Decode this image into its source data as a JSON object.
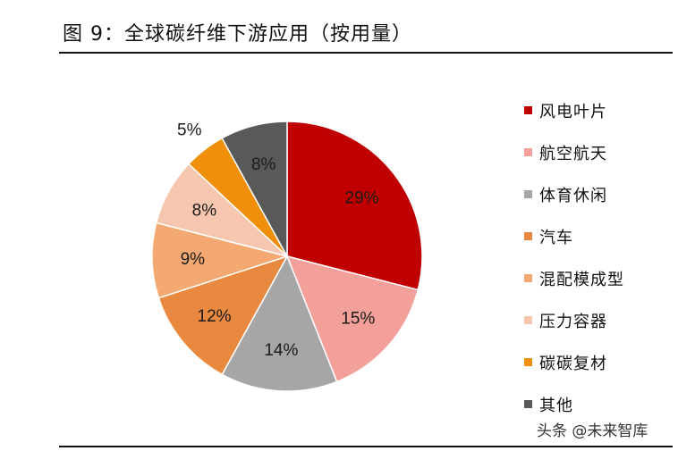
{
  "figure": {
    "title": "图 9：全球碳纤维下游应用（按用量）"
  },
  "watermark": {
    "text": "头条 @未来智库"
  },
  "chart_data": {
    "type": "pie",
    "title": "图 9：全球碳纤维下游应用（按用量）",
    "legend_position": "right",
    "categories": [
      "风电叶片",
      "航空航天",
      "体育休闲",
      "汽车",
      "混配模成型",
      "压力容器",
      "碳碳复材",
      "其他"
    ],
    "values": [
      29,
      15,
      14,
      12,
      9,
      8,
      5,
      8
    ],
    "labels": [
      "29%",
      "15%",
      "14%",
      "12%",
      "9%",
      "8%",
      "5%",
      "8%"
    ],
    "colors": [
      "#C00000",
      "#F4A09A",
      "#A6A6A6",
      "#E8893F",
      "#F3A971",
      "#F7C6AF",
      "#F0900A",
      "#595959"
    ]
  }
}
